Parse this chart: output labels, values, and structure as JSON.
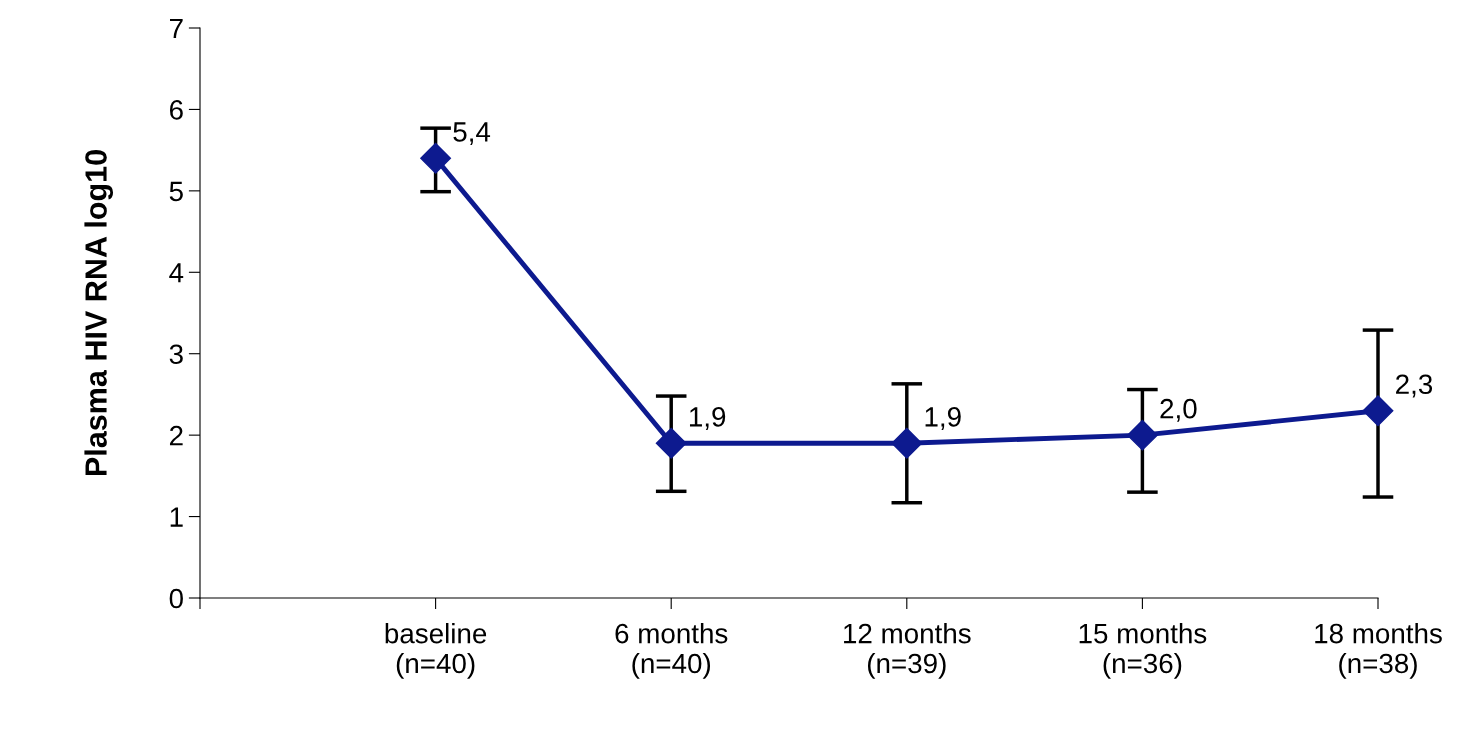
{
  "chart_data": {
    "type": "line",
    "ylabel": "Plasma HIV RNA log10",
    "categories": [
      null,
      "baseline\n(n=40)",
      "6 months\n(n=40)",
      "12 months\n(n=39)",
      "15 months\n(n=36)",
      "18 months\n(n=38)"
    ],
    "series": [
      {
        "color": "#0d1a8f",
        "values": [
          null,
          5.4,
          1.9,
          1.9,
          2.0,
          2.3
        ],
        "errors": [
          null,
          [
            4.99,
            5.77
          ],
          [
            1.31,
            2.48
          ],
          [
            1.17,
            2.63
          ],
          [
            1.3,
            2.56
          ],
          [
            1.24,
            3.29
          ]
        ],
        "value_labels": [
          null,
          "5,4",
          "1,9",
          "1,9",
          "2,0",
          "2,3"
        ]
      }
    ],
    "ylim": [
      0,
      7
    ],
    "yticks": [
      0,
      1,
      2,
      3,
      4,
      5,
      6,
      7
    ],
    "grid": false,
    "legend": false,
    "marker": "diamond",
    "line_style": "solid"
  }
}
